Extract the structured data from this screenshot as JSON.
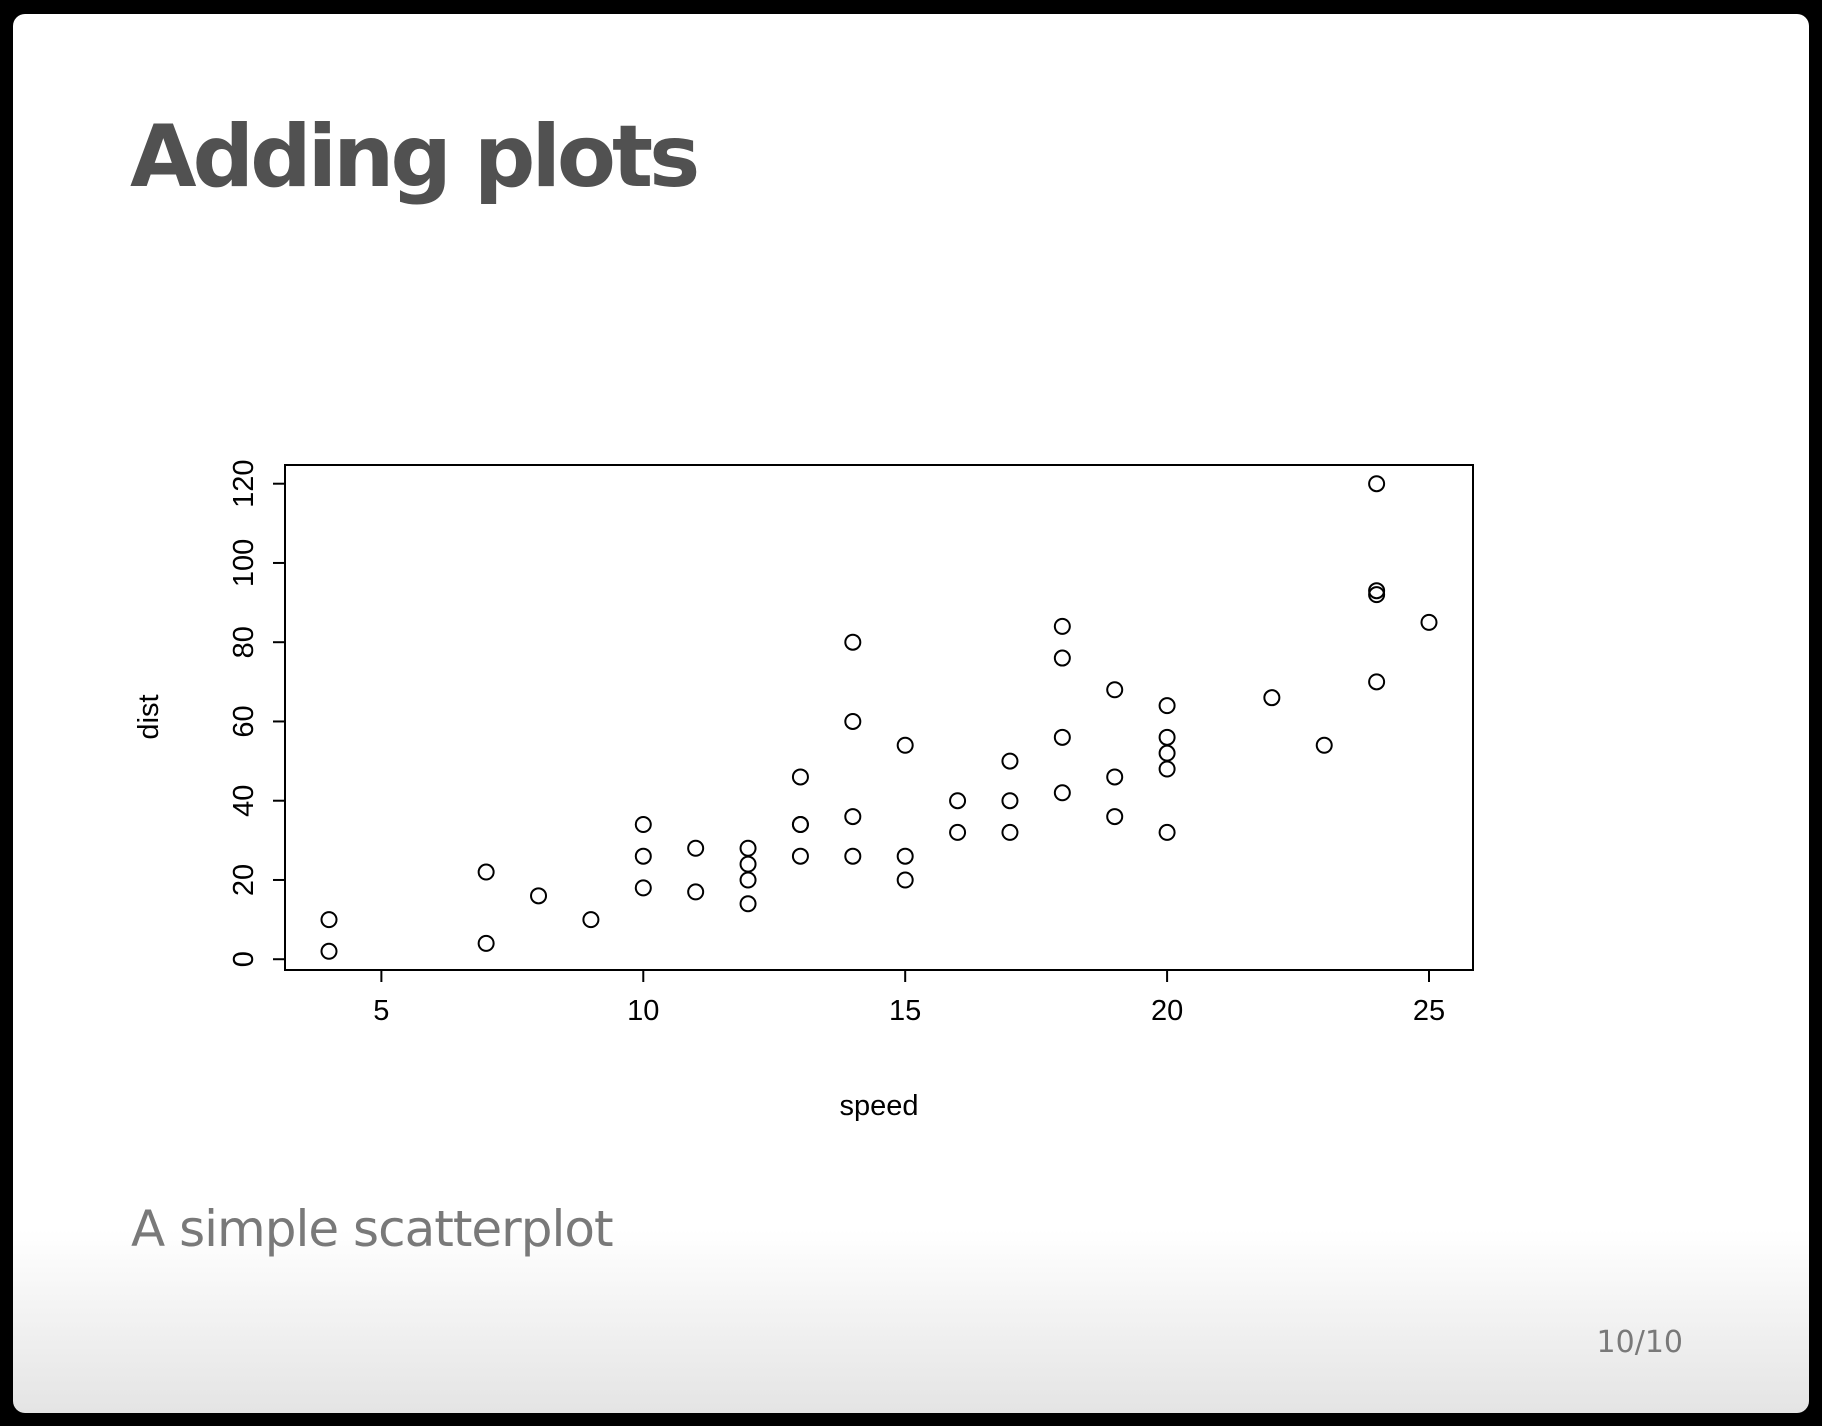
{
  "slide": {
    "title": "Adding plots",
    "caption": "A simple scatterplot",
    "page_number": "10/10"
  },
  "chart_data": {
    "type": "scatter",
    "xlabel": "speed",
    "ylabel": "dist",
    "xlim": [
      3.16,
      25.84
    ],
    "ylim": [
      -2.72,
      124.72
    ],
    "x_ticks": [
      5,
      10,
      15,
      20,
      25
    ],
    "y_ticks": [
      0,
      20,
      40,
      60,
      80,
      100,
      120
    ],
    "grid": false,
    "marker": "open-circle",
    "series": [
      {
        "x": [
          4,
          4,
          7,
          7,
          8,
          9,
          10,
          10,
          10,
          11,
          11,
          12,
          12,
          12,
          12,
          13,
          13,
          13,
          13,
          14,
          14,
          14,
          14,
          15,
          15,
          15,
          16,
          16,
          17,
          17,
          17,
          18,
          18,
          18,
          18,
          19,
          19,
          19,
          20,
          20,
          20,
          20,
          20,
          22,
          23,
          24,
          24,
          24,
          24,
          25
        ],
        "y": [
          2,
          10,
          4,
          22,
          16,
          10,
          18,
          26,
          34,
          17,
          28,
          14,
          20,
          24,
          28,
          26,
          34,
          34,
          46,
          26,
          36,
          60,
          80,
          20,
          26,
          54,
          32,
          40,
          32,
          40,
          50,
          42,
          56,
          76,
          84,
          36,
          46,
          68,
          32,
          48,
          52,
          56,
          64,
          66,
          54,
          70,
          92,
          93,
          120,
          85
        ]
      }
    ]
  }
}
